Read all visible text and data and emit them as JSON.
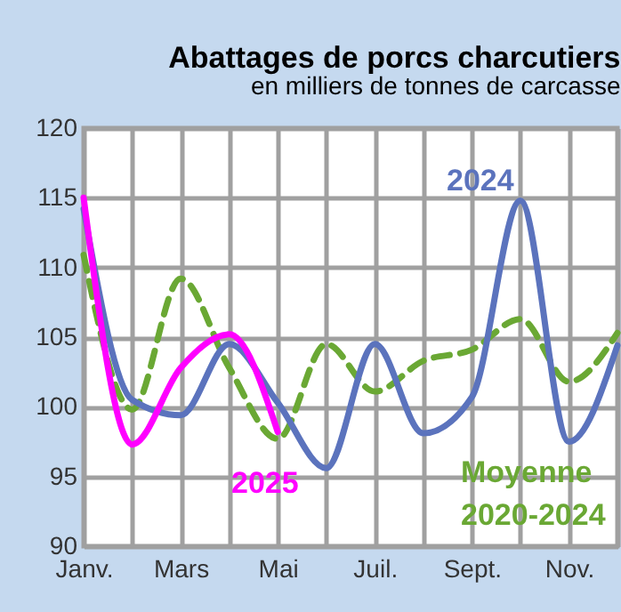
{
  "chart_data": {
    "type": "line",
    "title": "Abattages de porcs charcutiers",
    "subtitle": "en milliers de tonnes de carcasse",
    "categories": [
      "Janv.",
      null,
      "Mars",
      null,
      "Mai",
      null,
      "Juil.",
      null,
      "Sept.",
      null,
      "Nov.",
      null
    ],
    "series": [
      {
        "name": "Moyenne 2020-2024",
        "color": "#6aa834",
        "line_style": "dashed",
        "values": [
          110.9,
          99.8,
          109.2,
          102.8,
          97.7,
          104.5,
          101.1,
          103.3,
          104.1,
          106.3,
          101.8,
          105.3
        ]
      },
      {
        "name": "2024",
        "color": "#5b73bd",
        "line_style": "solid",
        "values": [
          114.2,
          100.5,
          99.4,
          104.5,
          100.3,
          95.6,
          104.5,
          98.1,
          100.7,
          114.8,
          97.5,
          104.4
        ]
      },
      {
        "name": "2025",
        "color": "#ff00ff",
        "line_style": "solid",
        "values": [
          115,
          97.3,
          102.8,
          105.2,
          98.2,
          null,
          null,
          null,
          null,
          null,
          null,
          null
        ]
      }
    ],
    "ylim": [
      90,
      120
    ],
    "yticks": [
      90,
      95,
      100,
      105,
      110,
      115,
      120
    ],
    "grid": true,
    "marker": "none"
  }
}
